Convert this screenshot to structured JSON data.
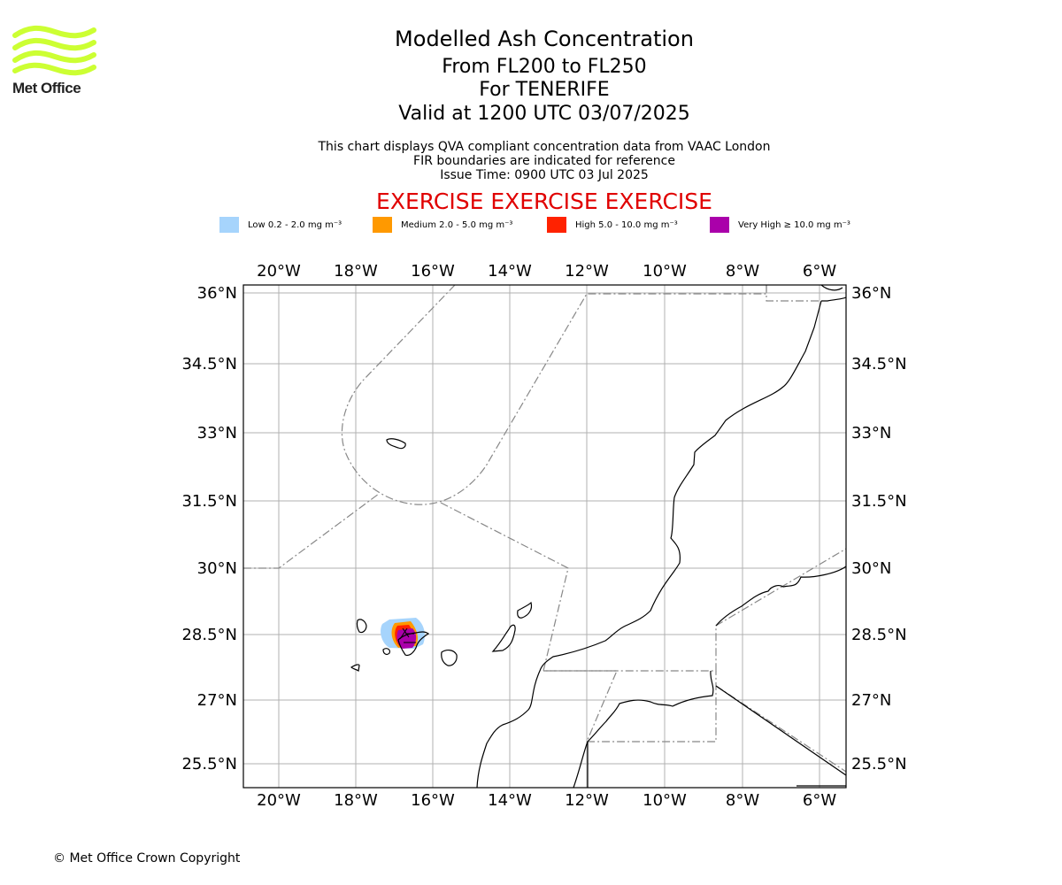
{
  "logo": {
    "text": "Met Office",
    "color": "#ccff33"
  },
  "header": {
    "title": "Modelled Ash Concentration",
    "level_range": "From FL200 to FL250",
    "volcano": "For TENERIFE",
    "valid_time": "Valid at 1200 UTC 03/07/2025",
    "note1": "This chart displays QVA compliant concentration data from VAAC London",
    "note2": "FIR boundaries are indicated for reference",
    "issue_time": "Issue Time: 0900 UTC 03 Jul 2025",
    "exercise_banner": "EXERCISE EXERCISE EXERCISE"
  },
  "legend": [
    {
      "label": "Low 0.2 - 2.0 mg m⁻³",
      "color": "#a6d4fc"
    },
    {
      "label": "Medium 2.0 - 5.0 mg m⁻³",
      "color": "#ff9900"
    },
    {
      "label": "High 5.0 - 10.0 mg m⁻³",
      "color": "#ff2200"
    },
    {
      "label": "Very High ≥ 10.0 mg m⁻³",
      "color": "#aa00aa"
    }
  ],
  "map": {
    "lon_ticks": [
      "20°W",
      "18°W",
      "16°W",
      "14°W",
      "12°W",
      "10°W",
      "8°W",
      "6°W"
    ],
    "lat_ticks": [
      "36°N",
      "34.5°N",
      "33°N",
      "31.5°N",
      "30°N",
      "28.5°N",
      "27°N",
      "25.5°N"
    ]
  },
  "footer": {
    "copyright": "© Met Office Crown Copyright"
  }
}
